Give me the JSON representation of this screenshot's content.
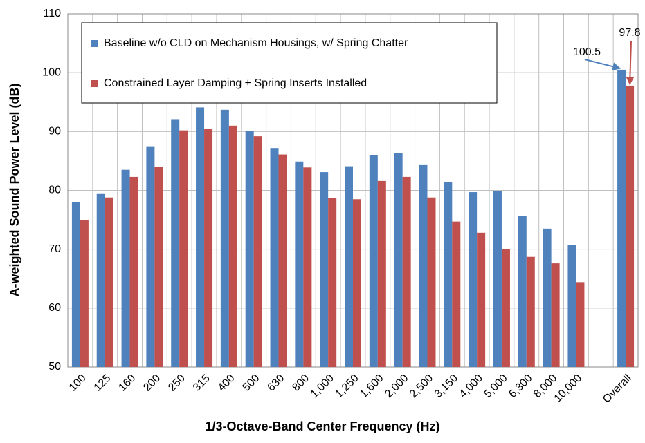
{
  "chart_data": {
    "type": "bar",
    "x_label": "1/3-Octave-Band Center Frequency (Hz)",
    "y_label": "A-weighted Sound Power Level (dB)",
    "categories": [
      "100",
      "125",
      "160",
      "200",
      "250",
      "315",
      "400",
      "500",
      "630",
      "800",
      "1,000",
      "1,250",
      "1,600",
      "2,000",
      "2,500",
      "3,150",
      "4,000",
      "5,000",
      "6,300",
      "8,000",
      "10,000",
      null,
      "Overall"
    ],
    "series": [
      {
        "name": "Baseline w/o CLD on Mechanism Housings, w/ Spring Chatter",
        "color": "#4f81bd",
        "values": [
          78,
          79.5,
          83.5,
          87.5,
          92.1,
          94.1,
          93.7,
          90.1,
          87.2,
          84.9,
          83.1,
          84.1,
          86,
          86.3,
          84.3,
          81.4,
          79.7,
          79.9,
          75.6,
          73.5,
          70.7,
          null,
          100.5
        ]
      },
      {
        "name": "Constrained Layer Damping + Spring Inserts Installed",
        "color": "#c0504d",
        "values": [
          75,
          78.8,
          82.3,
          84,
          90.2,
          90.5,
          91,
          89.2,
          86.1,
          83.9,
          78.7,
          78.5,
          81.6,
          82.3,
          78.8,
          74.7,
          72.8,
          70,
          68.7,
          67.6,
          64.4,
          null,
          97.8
        ]
      }
    ],
    "ylim": [
      50,
      110
    ],
    "yticks": [
      50,
      60,
      70,
      80,
      90,
      100,
      110
    ],
    "grid": true,
    "legend": "upper left"
  }
}
